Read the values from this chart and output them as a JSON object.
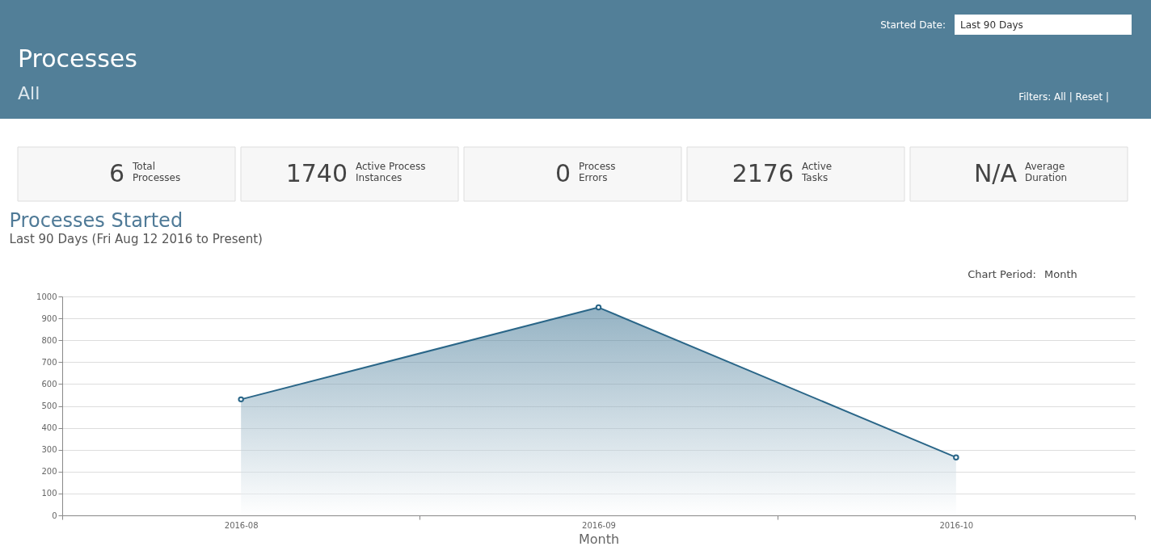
{
  "chart_data": [
    {
      "type": "other",
      "title": "Processes",
      "subtitle": "All",
      "annotations": [
        "Started Date:",
        "Last 90 Days",
        "Filters: All | Reset |",
        "6",
        "Total\nProcesses",
        "1740",
        "Active Process\nInstances",
        "0",
        "Process\nErrors",
        "2176",
        "Active\nTasks",
        "N/A",
        "Average\nDuration"
      ]
    },
    {
      "type": "area",
      "title": "Processes Started",
      "subtitle": "Last 90 Days (Fri Aug 12 2016 to Present)",
      "xlabel": "Month",
      "categories": [
        "2016-08",
        "2016-09",
        "2016-10"
      ],
      "series": [
        {
          "color": "#2a6688",
          "values": [
            530,
            950,
            265
          ]
        }
      ],
      "ylim": [
        0,
        1000
      ],
      "yticks": [
        0,
        100,
        200,
        300,
        400,
        500,
        600,
        700,
        800,
        900,
        1000
      ],
      "grid": "y",
      "marker": "circle",
      "annotations": [
        "Chart Period:",
        "Month"
      ]
    }
  ]
}
